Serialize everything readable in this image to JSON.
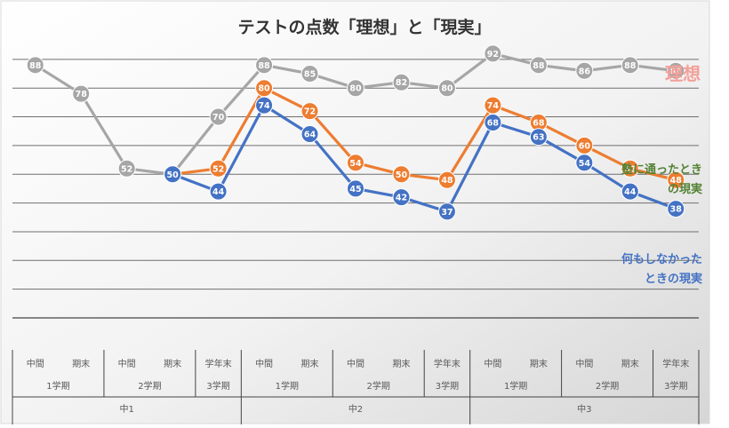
{
  "chart_data": {
    "type": "line",
    "title": "テストの点数「理想」と「現実」",
    "xlabel": "",
    "ylabel": "",
    "ylim": [
      0,
      100
    ],
    "grid": true,
    "category_levels": {
      "terms": [
        "中間",
        "期末",
        "中間",
        "期末",
        "学年末",
        "中間",
        "期末",
        "中間",
        "期末",
        "学年末",
        "中間",
        "期末",
        "中間",
        "期末",
        "学年末"
      ],
      "semesters": [
        "1学期",
        "2学期",
        "3学期",
        "1学期",
        "2学期",
        "3学期",
        "1学期",
        "2学期",
        "3学期"
      ],
      "years": [
        "中1",
        "中2",
        "中3"
      ]
    },
    "series": [
      {
        "name": "理想",
        "color": "#a6a6a6",
        "values": [
          88,
          78,
          52,
          50,
          70,
          88,
          85,
          80,
          82,
          80,
          92,
          88,
          86,
          88,
          86
        ]
      },
      {
        "name": "塾に通ったときの現実",
        "color": "#ed7d31",
        "values": [
          null,
          null,
          null,
          50,
          52,
          80,
          72,
          54,
          50,
          48,
          74,
          68,
          60,
          52,
          48
        ]
      },
      {
        "name": "何もしなかったときの現実",
        "color": "#4472c4",
        "values": [
          null,
          null,
          null,
          50,
          44,
          74,
          64,
          45,
          42,
          37,
          68,
          63,
          54,
          44,
          38
        ]
      }
    ],
    "labels": {
      "ideal": "理想",
      "juku_line1": "塾に通ったとき",
      "juku_line2": "の現実",
      "nothing_line1": "何もしなかった",
      "nothing_line2": "ときの現実"
    },
    "label_colors": {
      "ideal": "#f4a09a",
      "juku": "#548235",
      "nothing": "#4472c4"
    }
  }
}
